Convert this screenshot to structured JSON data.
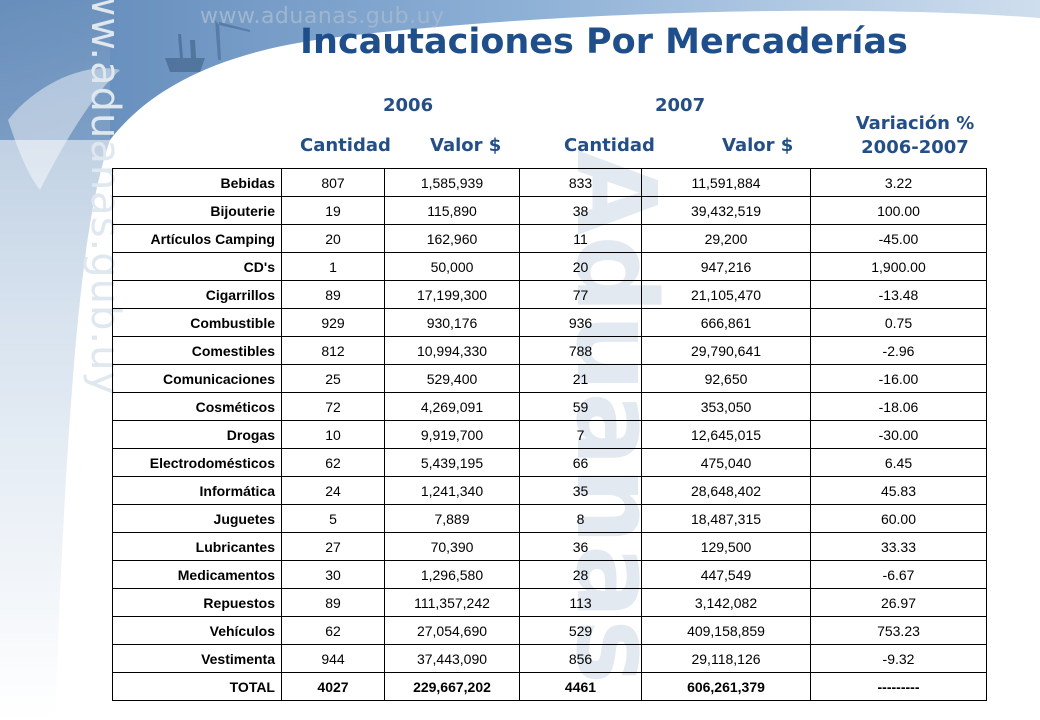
{
  "site_url": "www.aduanas.gub.uy",
  "watermark_text": "Aduanas",
  "title": "Incautaciones Por Mercaderías",
  "header": {
    "year1": "2006",
    "year2": "2007",
    "cantidad1": "Cantidad",
    "valor1": "Valor $",
    "cantidad2": "Cantidad",
    "valor2": "Valor $",
    "variacion_line1": "Variación %",
    "variacion_line2": "2006-2007"
  },
  "rows": [
    {
      "category": "Bebidas",
      "q2006": "807",
      "v2006": "1,585,939",
      "q2007": "833",
      "v2007": "11,591,884",
      "var": "3.22"
    },
    {
      "category": "Bijouterie",
      "q2006": "19",
      "v2006": "115,890",
      "q2007": "38",
      "v2007": "39,432,519",
      "var": "100.00"
    },
    {
      "category": "Artículos Camping",
      "q2006": "20",
      "v2006": "162,960",
      "q2007": "11",
      "v2007": "29,200",
      "var": "-45.00"
    },
    {
      "category": "CD's",
      "q2006": "1",
      "v2006": "50,000",
      "q2007": "20",
      "v2007": "947,216",
      "var": "1,900.00"
    },
    {
      "category": "Cigarrillos",
      "q2006": "89",
      "v2006": "17,199,300",
      "q2007": "77",
      "v2007": "21,105,470",
      "var": "-13.48"
    },
    {
      "category": "Combustible",
      "q2006": "929",
      "v2006": "930,176",
      "q2007": "936",
      "v2007": "666,861",
      "var": "0.75"
    },
    {
      "category": "Comestibles",
      "q2006": "812",
      "v2006": "10,994,330",
      "q2007": "788",
      "v2007": "29,790,641",
      "var": "-2.96"
    },
    {
      "category": "Comunicaciones",
      "q2006": "25",
      "v2006": "529,400",
      "q2007": "21",
      "v2007": "92,650",
      "var": "-16.00"
    },
    {
      "category": "Cosméticos",
      "q2006": "72",
      "v2006": "4,269,091",
      "q2007": "59",
      "v2007": "353,050",
      "var": "-18.06"
    },
    {
      "category": "Drogas",
      "q2006": "10",
      "v2006": "9,919,700",
      "q2007": "7",
      "v2007": "12,645,015",
      "var": "-30.00"
    },
    {
      "category": "Electrodomésticos",
      "q2006": "62",
      "v2006": "5,439,195",
      "q2007": "66",
      "v2007": "475,040",
      "var": "6.45"
    },
    {
      "category": "Informática",
      "q2006": "24",
      "v2006": "1,241,340",
      "q2007": "35",
      "v2007": "28,648,402",
      "var": "45.83"
    },
    {
      "category": "Juguetes",
      "q2006": "5",
      "v2006": "7,889",
      "q2007": "8",
      "v2007": "18,487,315",
      "var": "60.00"
    },
    {
      "category": "Lubricantes",
      "q2006": "27",
      "v2006": "70,390",
      "q2007": "36",
      "v2007": "129,500",
      "var": "33.33"
    },
    {
      "category": "Medicamentos",
      "q2006": "30",
      "v2006": "1,296,580",
      "q2007": "28",
      "v2007": "447,549",
      "var": "-6.67"
    },
    {
      "category": "Repuestos",
      "q2006": "89",
      "v2006": "111,357,242",
      "q2007": "113",
      "v2007": "3,142,082",
      "var": "26.97"
    },
    {
      "category": "Vehículos",
      "q2006": "62",
      "v2006": "27,054,690",
      "q2007": "529",
      "v2007": "409,158,859",
      "var": "753.23"
    },
    {
      "category": "Vestimenta",
      "q2006": "944",
      "v2006": "37,443,090",
      "q2007": "856",
      "v2007": "29,118,126",
      "var": "-9.32"
    }
  ],
  "total": {
    "category": "TOTAL",
    "q2006": "4027",
    "v2006": "229,667,202",
    "q2007": "4461",
    "v2007": "606,261,379",
    "var": "---------"
  },
  "colors": {
    "title": "#1f4f8a",
    "header": "#244f86",
    "banner": "#6f98c4"
  }
}
